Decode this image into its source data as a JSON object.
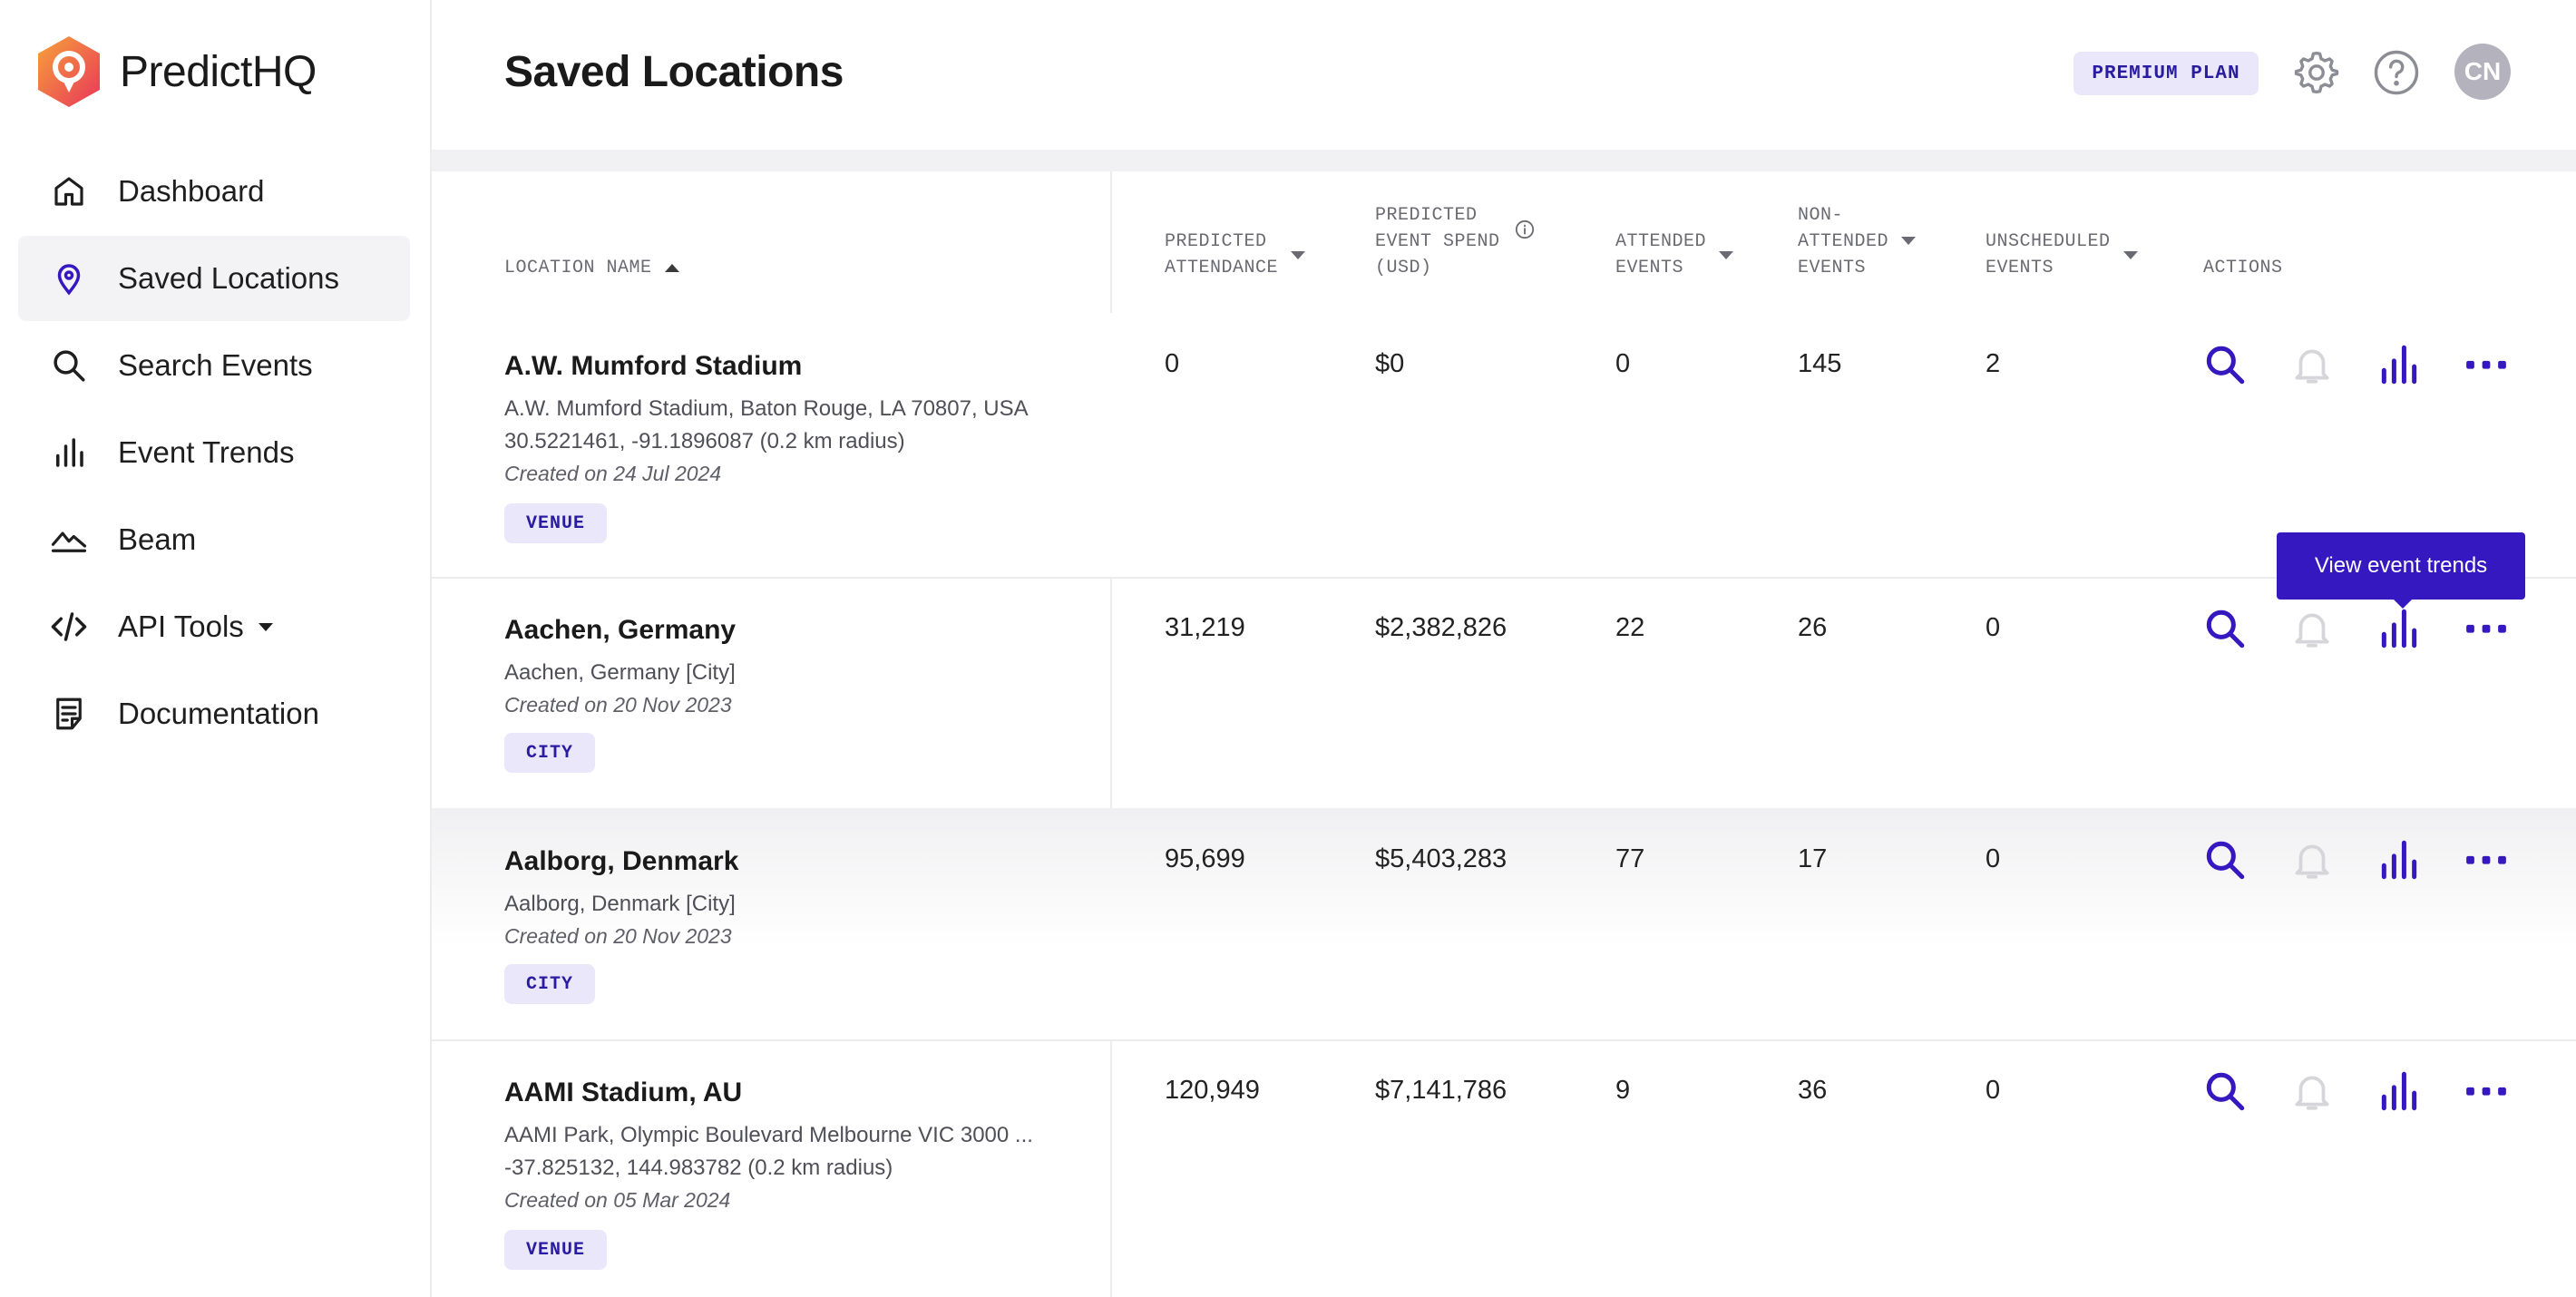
{
  "app": {
    "name": "PredictHQ"
  },
  "sidebar": {
    "items": [
      {
        "label": "Dashboard",
        "icon": "home-icon"
      },
      {
        "label": "Saved Locations",
        "icon": "location-pin-icon",
        "active": true
      },
      {
        "label": "Search Events",
        "icon": "search-icon"
      },
      {
        "label": "Event Trends",
        "icon": "bar-chart-icon"
      },
      {
        "label": "Beam",
        "icon": "beam-icon"
      },
      {
        "label": "API Tools",
        "icon": "code-icon",
        "has_dropdown": true
      },
      {
        "label": "Documentation",
        "icon": "document-icon"
      }
    ]
  },
  "header": {
    "title": "Saved Locations",
    "plan_badge": "PREMIUM PLAN",
    "avatar_initials": "CN"
  },
  "table": {
    "columns": {
      "location_name": "LOCATION NAME",
      "predicted_attendance": [
        "PREDICTED",
        "ATTENDANCE"
      ],
      "predicted_event_spend": [
        "PREDICTED",
        "EVENT SPEND",
        "(USD)"
      ],
      "attended_events": [
        "ATTENDED",
        "EVENTS"
      ],
      "non_attended_events": [
        "NON-",
        "ATTENDED",
        "EVENTS"
      ],
      "unscheduled_events": [
        "UNSCHEDULED",
        "EVENTS"
      ],
      "actions": "ACTIONS"
    },
    "rows": [
      {
        "name": "A.W. Mumford Stadium",
        "address": "A.W. Mumford Stadium, Baton Rouge, LA 70807, USA",
        "coords": "30.5221461, -91.1896087 (0.2 km radius)",
        "created": "Created on 24 Jul 2024",
        "type": "VENUE",
        "predicted_attendance": "0",
        "predicted_spend": "$0",
        "attended": "0",
        "non_attended": "145",
        "unscheduled": "2"
      },
      {
        "name": "Aachen, Germany",
        "address": "Aachen, Germany [City]",
        "created": "Created on 20 Nov 2023",
        "type": "CITY",
        "predicted_attendance": "31,219",
        "predicted_spend": "$2,382,826",
        "attended": "22",
        "non_attended": "26",
        "unscheduled": "0"
      },
      {
        "name": "Aalborg, Denmark",
        "address": "Aalborg, Denmark [City]",
        "created": "Created on 20 Nov 2023",
        "type": "CITY",
        "predicted_attendance": "95,699",
        "predicted_spend": "$5,403,283",
        "attended": "77",
        "non_attended": "17",
        "unscheduled": "0"
      },
      {
        "name": "AAMI Stadium, AU",
        "address": "AAMI Park, Olympic Boulevard Melbourne VIC 3000 ...",
        "coords": "-37.825132, 144.983782 (0.2 km radius)",
        "created": "Created on 05 Mar 2024",
        "type": "VENUE",
        "predicted_attendance": "120,949",
        "predicted_spend": "$7,141,786",
        "attended": "9",
        "non_attended": "36",
        "unscheduled": "0"
      }
    ]
  },
  "tooltip": {
    "text": "View event trends"
  },
  "colors": {
    "accent": "#3618c0",
    "badge_bg": "#ebe7fb",
    "badge_text": "#2a1ca0",
    "muted_icon": "#d6d6da"
  }
}
